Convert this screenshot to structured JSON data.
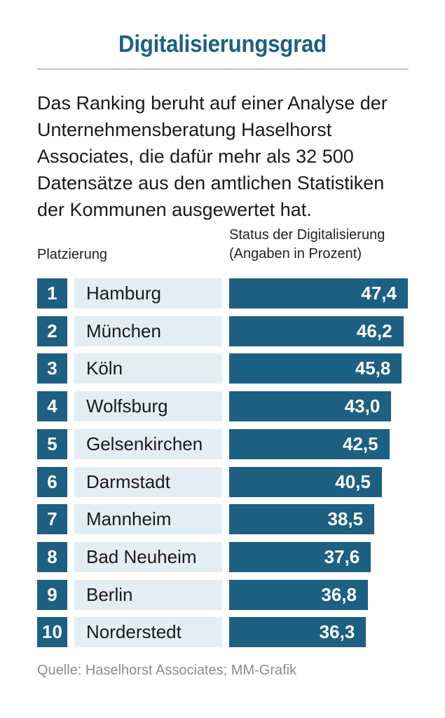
{
  "title": "Digitalisierungsgrad",
  "intro_lines": [
    "Das Ranking beruht auf einer Analyse der",
    "Unternehmensberatung Haselhorst",
    "Associates, die dafür mehr als 32 500",
    "Datensätze aus den amtlichen Statistiken",
    "der Kommunen ausgewertet hat."
  ],
  "rank_header": "Platzierung",
  "status_header_lines": [
    "Status der Digitalisierung",
    "(Angaben in Prozent)"
  ],
  "source": "Quelle: Haselhorst Associates; MM-Grafik",
  "colors": {
    "accent": "#1d6081",
    "label_bg": "#e3edf4",
    "source_text": "#8c8c8c"
  },
  "chart_data": {
    "type": "bar",
    "orientation": "horizontal",
    "title": "Digitalisierungsgrad",
    "ylabel": "Status der Digitalisierung (Angaben in Prozent)",
    "categories": [
      "Hamburg",
      "München",
      "Köln",
      "Wolfsburg",
      "Gelsenkirchen",
      "Darmstadt",
      "Mannheim",
      "Bad Neuheim",
      "Berlin",
      "Norderstedt"
    ],
    "ranks": [
      "1",
      "2",
      "3",
      "4",
      "5",
      "6",
      "7",
      "8",
      "9",
      "10"
    ],
    "values": [
      47.4,
      46.2,
      45.8,
      43.0,
      42.5,
      40.5,
      38.5,
      37.6,
      36.8,
      36.3
    ],
    "value_labels": [
      "47,4",
      "46,2",
      "45,8",
      "43,0",
      "42,5",
      "40,5",
      "38,5",
      "37,6",
      "36,8",
      "36,3"
    ],
    "grid": false,
    "legend": "none"
  }
}
